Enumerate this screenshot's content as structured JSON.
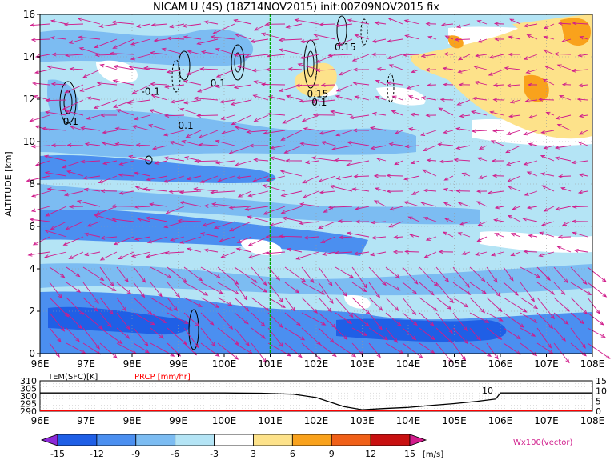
{
  "title": "NICAM U (4S) (18Z14NOV2015) init:00Z09NOV2015 fix",
  "colors": {
    "neg15": "#8c28d8",
    "neg12": "#1f5fe6",
    "neg9": "#4b8ff0",
    "neg6": "#7cbcf2",
    "neg3": "#b4e4f5",
    "zero": "#ffffff",
    "pos3": "#fde28a",
    "pos6": "#f9a21c",
    "pos9": "#f06018",
    "pos12": "#c81010",
    "pos15": "#d21c8c",
    "vector": "#d01c8b",
    "contour": "#000000",
    "marker_line": "#00aa00",
    "prcp": "#ff0000"
  },
  "chart_data": [
    {
      "type": "heatmap",
      "title": "NICAM U (4S) (18Z14NOV2015) init:00Z09NOV2015 fix",
      "ylabel": "ALTITUDE [km]",
      "xlim": [
        96,
        108
      ],
      "ylim": [
        0,
        16
      ],
      "x_ticks": [
        "96E",
        "97E",
        "98E",
        "99E",
        "100E",
        "101E",
        "102E",
        "103E",
        "104E",
        "105E",
        "106E",
        "107E",
        "108E"
      ],
      "y_ticks": [
        "0",
        "2",
        "4",
        "6",
        "8",
        "10",
        "12",
        "14",
        "16"
      ],
      "grid": true,
      "marker_line_x": 101,
      "contour_labels": [
        {
          "text": "0.1",
          "x": 96.5,
          "y": 10.8
        },
        {
          "text": "-0.1",
          "x": 98.2,
          "y": 12.2
        },
        {
          "text": "0.1",
          "x": 99.0,
          "y": 10.6
        },
        {
          "text": "0.1",
          "x": 99.7,
          "y": 12.6
        },
        {
          "text": "0.15",
          "x": 102.4,
          "y": 14.3
        },
        {
          "text": "0.15",
          "x": 101.8,
          "y": 12.1
        },
        {
          "text": "0.1",
          "x": 101.9,
          "y": 11.7
        }
      ],
      "vector_note": "Wx100(vector)"
    },
    {
      "type": "line",
      "series": [
        {
          "name": "TEM(SFC)[K]",
          "x": [
            96,
            97,
            98,
            99,
            100,
            100.8,
            101.5,
            102,
            102.6,
            103,
            103.5,
            104,
            104.5,
            105,
            105.5,
            105.9,
            106,
            107,
            108
          ],
          "y": [
            302,
            302,
            302,
            302,
            302,
            301.8,
            301.2,
            299,
            293,
            291,
            291.8,
            292.5,
            293.8,
            295,
            296.5,
            298,
            302,
            302,
            302
          ]
        },
        {
          "name": "PRCP [mm/hr]",
          "x": [
            96,
            108
          ],
          "y": [
            0,
            0
          ]
        }
      ],
      "xlim": [
        96,
        108
      ],
      "y_left_ticks": [
        "290",
        "295",
        "300",
        "305",
        "310"
      ],
      "y_right_ticks": [
        "0",
        "5",
        "10",
        "15"
      ],
      "annotation": "10"
    }
  ],
  "colorbar": {
    "labels": [
      "-15",
      "-12",
      "-9",
      "-6",
      "-3",
      "3",
      "6",
      "9",
      "12",
      "15"
    ],
    "unit": "[m/s]"
  }
}
